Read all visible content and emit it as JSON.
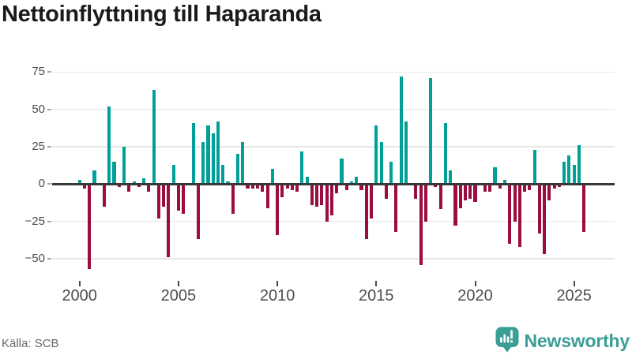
{
  "title": "Nettoinflyttning till Haparanda",
  "source": "Källa: SCB",
  "brand": {
    "name": "Newsworthy",
    "color": "#3a9d96"
  },
  "colors": {
    "positive": "#00a099",
    "negative": "#9b0c40",
    "zero_line": "#383838",
    "gridline": "#e7e7e7",
    "axis_text": "#4d4d4d",
    "title_text": "#1a1a1a",
    "source_text": "#696969",
    "background": "#ffffff"
  },
  "chart_data": {
    "type": "bar",
    "title": "Nettoinflyttning till Haparanda",
    "frequency": "quarterly",
    "start_period": "2000 Q1",
    "end_period": "2025 Q3",
    "xlabel": "",
    "ylabel": "",
    "grid": "horizontal",
    "legend": "none",
    "x_tick_labels": [
      "2000",
      "2005",
      "2010",
      "2015",
      "2020",
      "2025"
    ],
    "y_tick_values": [
      75,
      50,
      25,
      0,
      -25,
      -50
    ],
    "y_tick_labels": [
      "75",
      "50",
      "25",
      "0",
      "−25",
      "−50"
    ],
    "ylim": [
      -62,
      79
    ],
    "series": [
      {
        "name": "Nettoinflyttning",
        "values": [
          3,
          -3,
          -57,
          9,
          0,
          -15,
          52,
          15,
          -2,
          25,
          -5,
          2,
          -2,
          4,
          -5,
          63,
          -23,
          -15,
          -49,
          13,
          -18,
          -20,
          0,
          41,
          -37,
          28,
          39,
          34,
          42,
          13,
          2,
          -20,
          20,
          28,
          -3,
          -3,
          -3,
          -5,
          -16,
          10,
          -34,
          -9,
          -3,
          -4,
          -5,
          22,
          5,
          -14,
          -15,
          -14,
          -25,
          -21,
          -6,
          17,
          -4,
          2,
          5,
          -4,
          -37,
          -23,
          39,
          28,
          -10,
          15,
          -32,
          72,
          42,
          0,
          -10,
          -54,
          -25,
          71,
          -2,
          -17,
          41,
          9,
          -28,
          -16,
          -11,
          -10,
          -12,
          0,
          -5,
          -5,
          11,
          -3,
          3,
          -40,
          -25,
          -42,
          -5,
          -4,
          23,
          -33,
          -47,
          -11,
          -3,
          -2,
          15,
          19,
          13,
          26,
          -32
        ]
      }
    ]
  }
}
